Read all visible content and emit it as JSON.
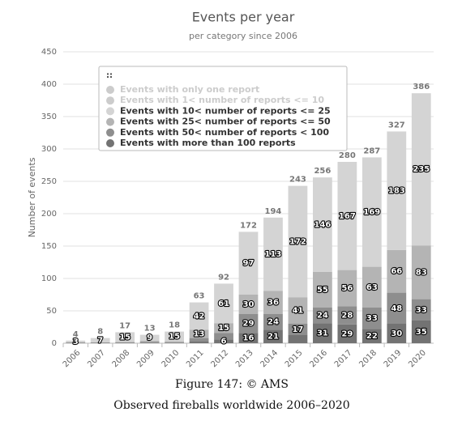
{
  "chart_data": {
    "type": "stacked-bar",
    "title": "Events per year",
    "subtitle": "per category since 2006",
    "y_axis_label": "Number of events",
    "legend_handle": "::",
    "categories": [
      "2006",
      "2007",
      "2008",
      "2009",
      "2010",
      "2011",
      "2012",
      "2013",
      "2014",
      "2015",
      "2016",
      "2017",
      "2018",
      "2019",
      "2020"
    ],
    "ylim": [
      0,
      450
    ],
    "yticks": [
      0,
      50,
      100,
      150,
      200,
      250,
      300,
      350,
      400,
      450
    ],
    "grid": true,
    "stack_totals": [
      4,
      8,
      17,
      13,
      18,
      63,
      92,
      172,
      194,
      243,
      256,
      280,
      287,
      327,
      386
    ],
    "series": [
      {
        "name": "Events with only one report",
        "color": "#cccccc",
        "visible": false
      },
      {
        "name": "Events with 1< number of reports <= 10",
        "color": "#cccccc",
        "visible": false
      },
      {
        "name": "Events with 10< number of reports <= 25",
        "color": "#d4d4d4",
        "visible": true,
        "values": [
          3,
          7,
          15,
          9,
          15,
          42,
          61,
          97,
          113,
          172,
          146,
          167,
          169,
          183,
          235
        ],
        "value_labels": [
          3,
          7,
          15,
          9,
          15,
          42,
          61,
          97,
          113,
          172,
          146,
          167,
          169,
          183,
          235
        ]
      },
      {
        "name": "Events with 25< number of reports <= 50",
        "color": "#b4b4b4",
        "visible": true,
        "values": [
          0,
          0,
          1,
          2,
          2,
          13,
          15,
          30,
          36,
          41,
          55,
          56,
          63,
          66,
          83
        ],
        "value_labels": [
          null,
          null,
          null,
          null,
          null,
          13,
          15,
          30,
          36,
          41,
          55,
          56,
          63,
          66,
          83
        ]
      },
      {
        "name": "Events with 50< number of reports < 100",
        "color": "#8e8e8e",
        "visible": true,
        "values": [
          0,
          0,
          0,
          1,
          0,
          5,
          10,
          29,
          24,
          17,
          24,
          28,
          33,
          48,
          33
        ],
        "value_labels": [
          null,
          null,
          null,
          null,
          null,
          null,
          null,
          29,
          24,
          17,
          24,
          28,
          33,
          48,
          33
        ]
      },
      {
        "name": "Events with more than 100 reports",
        "color": "#737373",
        "visible": true,
        "values": [
          1,
          1,
          1,
          1,
          1,
          3,
          6,
          16,
          21,
          13,
          31,
          29,
          22,
          30,
          35
        ],
        "value_labels": [
          null,
          null,
          null,
          null,
          null,
          null,
          6,
          16,
          21,
          null,
          31,
          29,
          22,
          30,
          35
        ]
      }
    ],
    "caption": [
      "Figure 147: © AMS",
      "Observed fireballs worldwide 2006–2020"
    ]
  }
}
